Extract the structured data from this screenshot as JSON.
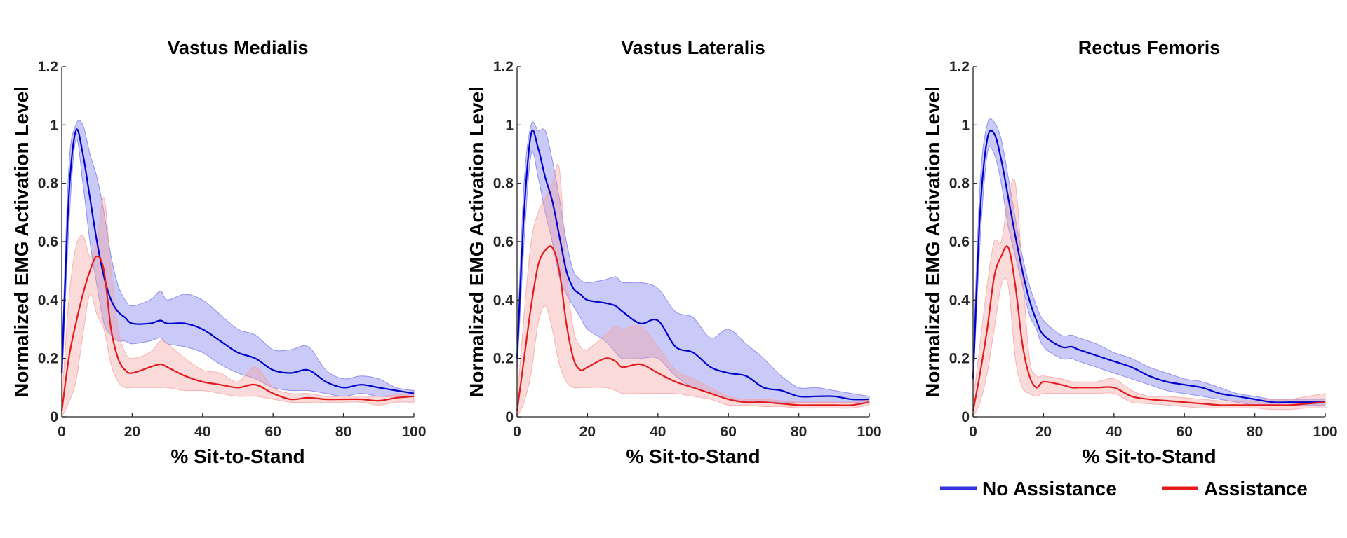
{
  "chart_data": [
    {
      "type": "line",
      "title": "Vastus Medialis",
      "xlabel": "% Sit-to-Stand",
      "ylabel": "Normalized EMG Activation Level",
      "xlim": [
        0,
        100
      ],
      "ylim": [
        0,
        1.2
      ],
      "xticks": [
        0,
        20,
        40,
        60,
        80,
        100
      ],
      "yticks": [
        0,
        0.2,
        0.4,
        0.6,
        0.8,
        1,
        1.2
      ],
      "ytick_labels": [
        "0",
        "0.2",
        "0.4",
        "0.6",
        "0.8",
        "1",
        "1.2"
      ],
      "x": [
        0,
        2,
        4,
        6,
        8,
        10,
        12,
        14,
        16,
        18,
        20,
        25,
        28,
        30,
        35,
        40,
        45,
        50,
        55,
        60,
        65,
        70,
        75,
        80,
        85,
        90,
        95,
        100
      ],
      "series": [
        {
          "name": "No Assistance",
          "color": "#0000cc",
          "band_color": "#7b7bf0",
          "mean": [
            0.15,
            0.75,
            0.98,
            0.9,
            0.75,
            0.6,
            0.48,
            0.4,
            0.36,
            0.34,
            0.32,
            0.32,
            0.33,
            0.32,
            0.32,
            0.3,
            0.26,
            0.22,
            0.2,
            0.16,
            0.15,
            0.16,
            0.12,
            0.1,
            0.11,
            0.1,
            0.09,
            0.08
          ],
          "upper": [
            0.2,
            0.85,
            1.0,
            1.0,
            0.9,
            0.82,
            0.7,
            0.55,
            0.45,
            0.4,
            0.38,
            0.4,
            0.43,
            0.4,
            0.42,
            0.4,
            0.35,
            0.3,
            0.28,
            0.23,
            0.23,
            0.24,
            0.16,
            0.13,
            0.14,
            0.13,
            0.1,
            0.09
          ],
          "lower": [
            0.1,
            0.65,
            0.95,
            0.8,
            0.6,
            0.45,
            0.32,
            0.28,
            0.26,
            0.26,
            0.25,
            0.26,
            0.27,
            0.25,
            0.24,
            0.22,
            0.18,
            0.15,
            0.13,
            0.1,
            0.09,
            0.09,
            0.08,
            0.07,
            0.08,
            0.07,
            0.07,
            0.07
          ]
        },
        {
          "name": "Assistance",
          "color": "#e41a1c",
          "band_color": "#f5a3a3",
          "mean": [
            0.02,
            0.2,
            0.32,
            0.42,
            0.5,
            0.55,
            0.5,
            0.3,
            0.2,
            0.16,
            0.15,
            0.17,
            0.18,
            0.17,
            0.14,
            0.12,
            0.11,
            0.1,
            0.11,
            0.08,
            0.06,
            0.065,
            0.06,
            0.06,
            0.06,
            0.055,
            0.065,
            0.07
          ],
          "upper": [
            0.05,
            0.4,
            0.58,
            0.62,
            0.55,
            0.6,
            0.75,
            0.5,
            0.3,
            0.22,
            0.2,
            0.22,
            0.26,
            0.25,
            0.2,
            0.16,
            0.15,
            0.12,
            0.17,
            0.1,
            0.08,
            0.08,
            0.07,
            0.07,
            0.07,
            0.07,
            0.075,
            0.08
          ],
          "lower": [
            0.0,
            0.05,
            0.12,
            0.28,
            0.42,
            0.35,
            0.3,
            0.18,
            0.12,
            0.1,
            0.1,
            0.1,
            0.1,
            0.1,
            0.09,
            0.09,
            0.08,
            0.07,
            0.07,
            0.06,
            0.05,
            0.05,
            0.05,
            0.05,
            0.05,
            0.04,
            0.05,
            0.05
          ]
        }
      ]
    },
    {
      "type": "line",
      "title": "Vastus Lateralis",
      "xlabel": "% Sit-to-Stand",
      "ylabel": "Normalized EMG Activation Level",
      "xlim": [
        0,
        100
      ],
      "ylim": [
        0,
        1.2
      ],
      "xticks": [
        0,
        20,
        40,
        60,
        80,
        100
      ],
      "yticks": [
        0,
        0.2,
        0.4,
        0.6,
        0.8,
        1,
        1.2
      ],
      "ytick_labels": [
        "0",
        "0.2",
        "0.4",
        "0.6",
        "0.8",
        "1",
        "1.2"
      ],
      "x": [
        0,
        2,
        4,
        6,
        8,
        10,
        12,
        14,
        16,
        18,
        20,
        25,
        28,
        30,
        35,
        40,
        45,
        50,
        55,
        60,
        65,
        70,
        75,
        80,
        85,
        90,
        95,
        100
      ],
      "series": [
        {
          "name": "No Assistance",
          "color": "#0000cc",
          "band_color": "#7b7bf0",
          "mean": [
            0.2,
            0.7,
            0.97,
            0.92,
            0.82,
            0.74,
            0.62,
            0.5,
            0.44,
            0.42,
            0.4,
            0.39,
            0.38,
            0.36,
            0.32,
            0.33,
            0.24,
            0.22,
            0.17,
            0.15,
            0.14,
            0.1,
            0.09,
            0.07,
            0.07,
            0.07,
            0.06,
            0.06
          ],
          "upper": [
            0.25,
            0.8,
            1.0,
            0.98,
            0.98,
            0.88,
            0.75,
            0.6,
            0.5,
            0.47,
            0.46,
            0.47,
            0.48,
            0.46,
            0.46,
            0.44,
            0.36,
            0.34,
            0.27,
            0.3,
            0.25,
            0.2,
            0.14,
            0.1,
            0.1,
            0.09,
            0.08,
            0.07
          ],
          "lower": [
            0.15,
            0.6,
            0.9,
            0.82,
            0.7,
            0.6,
            0.48,
            0.42,
            0.38,
            0.34,
            0.3,
            0.26,
            0.22,
            0.2,
            0.2,
            0.2,
            0.14,
            0.1,
            0.08,
            0.06,
            0.05,
            0.05,
            0.05,
            0.05,
            0.05,
            0.05,
            0.05,
            0.05
          ]
        },
        {
          "name": "Assistance",
          "color": "#e41a1c",
          "band_color": "#f5a3a3",
          "mean": [
            0.02,
            0.2,
            0.38,
            0.52,
            0.57,
            0.58,
            0.5,
            0.32,
            0.2,
            0.16,
            0.17,
            0.2,
            0.19,
            0.17,
            0.18,
            0.15,
            0.12,
            0.1,
            0.08,
            0.06,
            0.05,
            0.05,
            0.045,
            0.04,
            0.04,
            0.04,
            0.04,
            0.05
          ],
          "upper": [
            0.05,
            0.35,
            0.6,
            0.7,
            0.75,
            0.8,
            0.85,
            0.5,
            0.3,
            0.24,
            0.23,
            0.28,
            0.31,
            0.3,
            0.31,
            0.24,
            0.16,
            0.13,
            0.1,
            0.07,
            0.06,
            0.06,
            0.055,
            0.05,
            0.05,
            0.05,
            0.05,
            0.06
          ],
          "lower": [
            0.0,
            0.05,
            0.15,
            0.32,
            0.38,
            0.3,
            0.18,
            0.12,
            0.1,
            0.1,
            0.1,
            0.1,
            0.09,
            0.08,
            0.08,
            0.08,
            0.08,
            0.07,
            0.06,
            0.04,
            0.04,
            0.035,
            0.035,
            0.03,
            0.03,
            0.03,
            0.03,
            0.04
          ]
        }
      ]
    },
    {
      "type": "line",
      "title": "Rectus Femoris",
      "xlabel": "% Sit-to-Stand",
      "ylabel": "Normalized EMG Activation Level",
      "xlim": [
        0,
        100
      ],
      "ylim": [
        0,
        1.2
      ],
      "xticks": [
        0,
        20,
        40,
        60,
        80,
        100
      ],
      "yticks": [
        0,
        0.2,
        0.4,
        0.6,
        0.8,
        1,
        1.2
      ],
      "ytick_labels": [
        "0",
        "0.2",
        "0.4",
        "0.6",
        "0.8",
        "1",
        "1.2"
      ],
      "x": [
        0,
        2,
        4,
        6,
        8,
        10,
        12,
        14,
        16,
        18,
        20,
        25,
        28,
        30,
        35,
        40,
        45,
        50,
        55,
        60,
        65,
        70,
        75,
        80,
        85,
        90,
        95,
        100
      ],
      "series": [
        {
          "name": "No Assistance",
          "color": "#0000cc",
          "band_color": "#7b7bf0",
          "mean": [
            0.13,
            0.7,
            0.95,
            0.97,
            0.88,
            0.75,
            0.62,
            0.5,
            0.4,
            0.33,
            0.28,
            0.24,
            0.24,
            0.23,
            0.21,
            0.19,
            0.17,
            0.14,
            0.12,
            0.11,
            0.1,
            0.08,
            0.07,
            0.06,
            0.05,
            0.05,
            0.05,
            0.05
          ],
          "upper": [
            0.2,
            0.8,
            1.0,
            1.01,
            0.95,
            0.82,
            0.68,
            0.55,
            0.45,
            0.38,
            0.33,
            0.28,
            0.28,
            0.27,
            0.25,
            0.22,
            0.2,
            0.17,
            0.15,
            0.13,
            0.12,
            0.1,
            0.08,
            0.07,
            0.06,
            0.06,
            0.06,
            0.06
          ],
          "lower": [
            0.1,
            0.6,
            0.9,
            0.9,
            0.8,
            0.65,
            0.55,
            0.45,
            0.35,
            0.3,
            0.24,
            0.2,
            0.2,
            0.19,
            0.17,
            0.15,
            0.13,
            0.11,
            0.09,
            0.08,
            0.07,
            0.06,
            0.05,
            0.04,
            0.04,
            0.04,
            0.04,
            0.04
          ]
        },
        {
          "name": "Assistance",
          "color": "#e41a1c",
          "band_color": "#f5a3a3",
          "mean": [
            0.02,
            0.15,
            0.3,
            0.48,
            0.55,
            0.58,
            0.45,
            0.25,
            0.14,
            0.1,
            0.12,
            0.11,
            0.1,
            0.1,
            0.1,
            0.1,
            0.07,
            0.06,
            0.055,
            0.05,
            0.045,
            0.04,
            0.04,
            0.04,
            0.04,
            0.04,
            0.045,
            0.05
          ],
          "upper": [
            0.05,
            0.25,
            0.45,
            0.6,
            0.6,
            0.75,
            0.8,
            0.5,
            0.2,
            0.14,
            0.14,
            0.13,
            0.12,
            0.12,
            0.12,
            0.13,
            0.09,
            0.07,
            0.07,
            0.065,
            0.06,
            0.055,
            0.055,
            0.055,
            0.06,
            0.06,
            0.07,
            0.08
          ],
          "lower": [
            0.0,
            0.05,
            0.15,
            0.3,
            0.45,
            0.45,
            0.2,
            0.1,
            0.08,
            0.07,
            0.08,
            0.08,
            0.08,
            0.08,
            0.08,
            0.08,
            0.05,
            0.045,
            0.04,
            0.035,
            0.03,
            0.03,
            0.03,
            0.03,
            0.025,
            0.025,
            0.03,
            0.03
          ]
        }
      ]
    }
  ],
  "legend": {
    "placement": "bottom-right",
    "items": [
      {
        "label": "No Assistance",
        "color": "#3333dd"
      },
      {
        "label": "Assistance",
        "color": "#e41a1c"
      }
    ]
  }
}
